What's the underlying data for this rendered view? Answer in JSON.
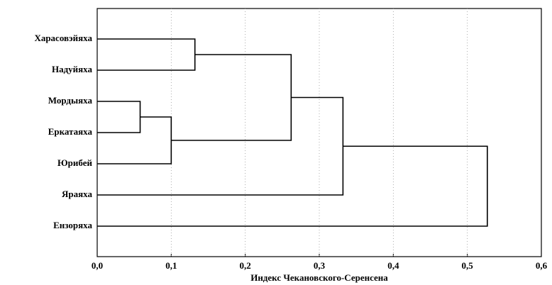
{
  "chart_data": {
    "type": "dendrogram",
    "xlabel": "Индекс Чекановского-Серенсена",
    "xlim": [
      0,
      0.6
    ],
    "xticks": [
      {
        "value": 0,
        "label": "0,0"
      },
      {
        "value": 0.1,
        "label": "0,1"
      },
      {
        "value": 0.2,
        "label": "0,2"
      },
      {
        "value": 0.3,
        "label": "0,3"
      },
      {
        "value": 0.4,
        "label": "0,4"
      },
      {
        "value": 0.5,
        "label": "0,5"
      },
      {
        "value": 0.6,
        "label": "0,6"
      }
    ],
    "grid": true,
    "color": "#000000",
    "tree": {
      "height": 0.527,
      "children": [
        {
          "height": 0.332,
          "children": [
            {
              "height": 0.262,
              "children": [
                {
                  "height": 0.132,
                  "children": [
                    {
                      "label": "Харасовэйяха"
                    },
                    {
                      "label": "Надуйяха"
                    }
                  ]
                },
                {
                  "height": 0.1,
                  "children": [
                    {
                      "height": 0.058,
                      "children": [
                        {
                          "label": "Мордыяха"
                        },
                        {
                          "label": "Еркатаяха"
                        }
                      ]
                    },
                    {
                      "label": "Юрибей"
                    }
                  ]
                }
              ]
            },
            {
              "label": "Яраяха"
            }
          ]
        },
        {
          "label": "Ензоряха"
        }
      ]
    }
  }
}
